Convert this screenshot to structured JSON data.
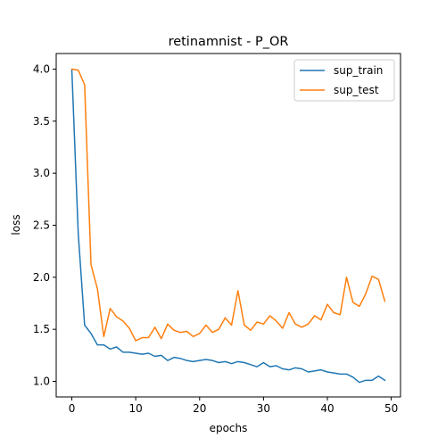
{
  "chart_data": {
    "type": "line",
    "title": "retinamnist - P_OR",
    "xlabel": "epochs",
    "ylabel": "loss",
    "xlim": [
      -2.45,
      51.45
    ],
    "ylim": [
      0.85,
      4.15
    ],
    "xticks": [
      0,
      10,
      20,
      30,
      40,
      50
    ],
    "yticks": [
      1.0,
      1.5,
      2.0,
      2.5,
      3.0,
      3.5,
      4.0
    ],
    "ytick_labels": [
      "1.0",
      "1.5",
      "2.0",
      "2.5",
      "3.0",
      "3.5",
      "4.0"
    ],
    "grid": false,
    "legend_position": "top-right",
    "x": [
      0,
      1,
      2,
      3,
      4,
      5,
      6,
      7,
      8,
      9,
      10,
      11,
      12,
      13,
      14,
      15,
      16,
      17,
      18,
      19,
      20,
      21,
      22,
      23,
      24,
      25,
      26,
      27,
      28,
      29,
      30,
      31,
      32,
      33,
      34,
      35,
      36,
      37,
      38,
      39,
      40,
      41,
      42,
      43,
      44,
      45,
      46,
      47,
      48,
      49
    ],
    "series": [
      {
        "name": "sup_train",
        "color": "#1f77b4",
        "values": [
          3.99,
          2.42,
          1.54,
          1.46,
          1.35,
          1.35,
          1.31,
          1.33,
          1.28,
          1.28,
          1.27,
          1.26,
          1.27,
          1.24,
          1.25,
          1.2,
          1.23,
          1.22,
          1.2,
          1.19,
          1.2,
          1.21,
          1.2,
          1.18,
          1.19,
          1.17,
          1.19,
          1.18,
          1.16,
          1.14,
          1.18,
          1.14,
          1.15,
          1.12,
          1.11,
          1.13,
          1.12,
          1.09,
          1.1,
          1.11,
          1.09,
          1.08,
          1.07,
          1.07,
          1.04,
          0.99,
          1.01,
          1.01,
          1.05,
          1.01
        ]
      },
      {
        "name": "sup_test",
        "color": "#ff7f0e",
        "values": [
          4.0,
          3.99,
          3.85,
          2.12,
          1.89,
          1.43,
          1.7,
          1.62,
          1.58,
          1.51,
          1.39,
          1.42,
          1.42,
          1.52,
          1.41,
          1.55,
          1.49,
          1.47,
          1.48,
          1.43,
          1.46,
          1.54,
          1.47,
          1.5,
          1.61,
          1.54,
          1.87,
          1.54,
          1.49,
          1.57,
          1.55,
          1.63,
          1.58,
          1.51,
          1.66,
          1.55,
          1.52,
          1.55,
          1.63,
          1.59,
          1.74,
          1.66,
          1.64,
          2.0,
          1.76,
          1.72,
          1.84,
          2.01,
          1.98,
          1.77
        ]
      }
    ]
  }
}
